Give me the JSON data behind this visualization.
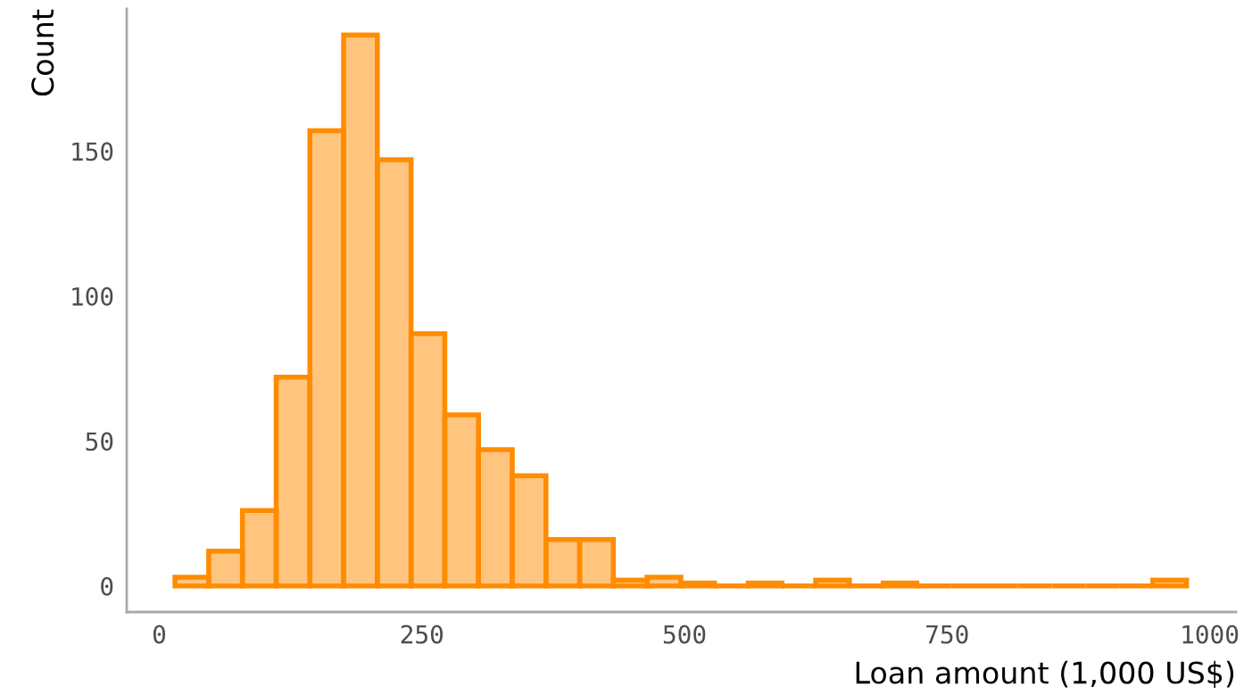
{
  "chart_data": {
    "type": "histogram",
    "xlabel": "Loan amount (1,000 US$)",
    "ylabel": "Count",
    "bins": [
      15,
      47.1,
      79.2,
      111.3,
      143.4,
      175.5,
      207.6,
      239.7,
      271.8,
      303.9,
      336,
      368.1,
      400.2,
      432.3,
      464.4,
      496.5,
      528.6,
      560.7,
      592.8,
      624.9,
      657,
      689.1,
      721.2,
      753.3,
      785.4,
      817.5,
      849.6,
      881.7,
      913.8,
      945.9,
      978
    ],
    "values": [
      3,
      12,
      26,
      72,
      157,
      190,
      147,
      87,
      59,
      47,
      38,
      16,
      16,
      2,
      3,
      1,
      0,
      1,
      0,
      2,
      0,
      1,
      0,
      0,
      0,
      0,
      0,
      0,
      0,
      2
    ],
    "color": "#ff8c00",
    "xlim": [
      -31,
      1025
    ],
    "xticks": [
      0,
      250,
      500,
      750,
      1000
    ],
    "ylim": [
      -9,
      199
    ],
    "yticks": [
      0,
      50,
      100,
      150
    ],
    "grid": false
  }
}
